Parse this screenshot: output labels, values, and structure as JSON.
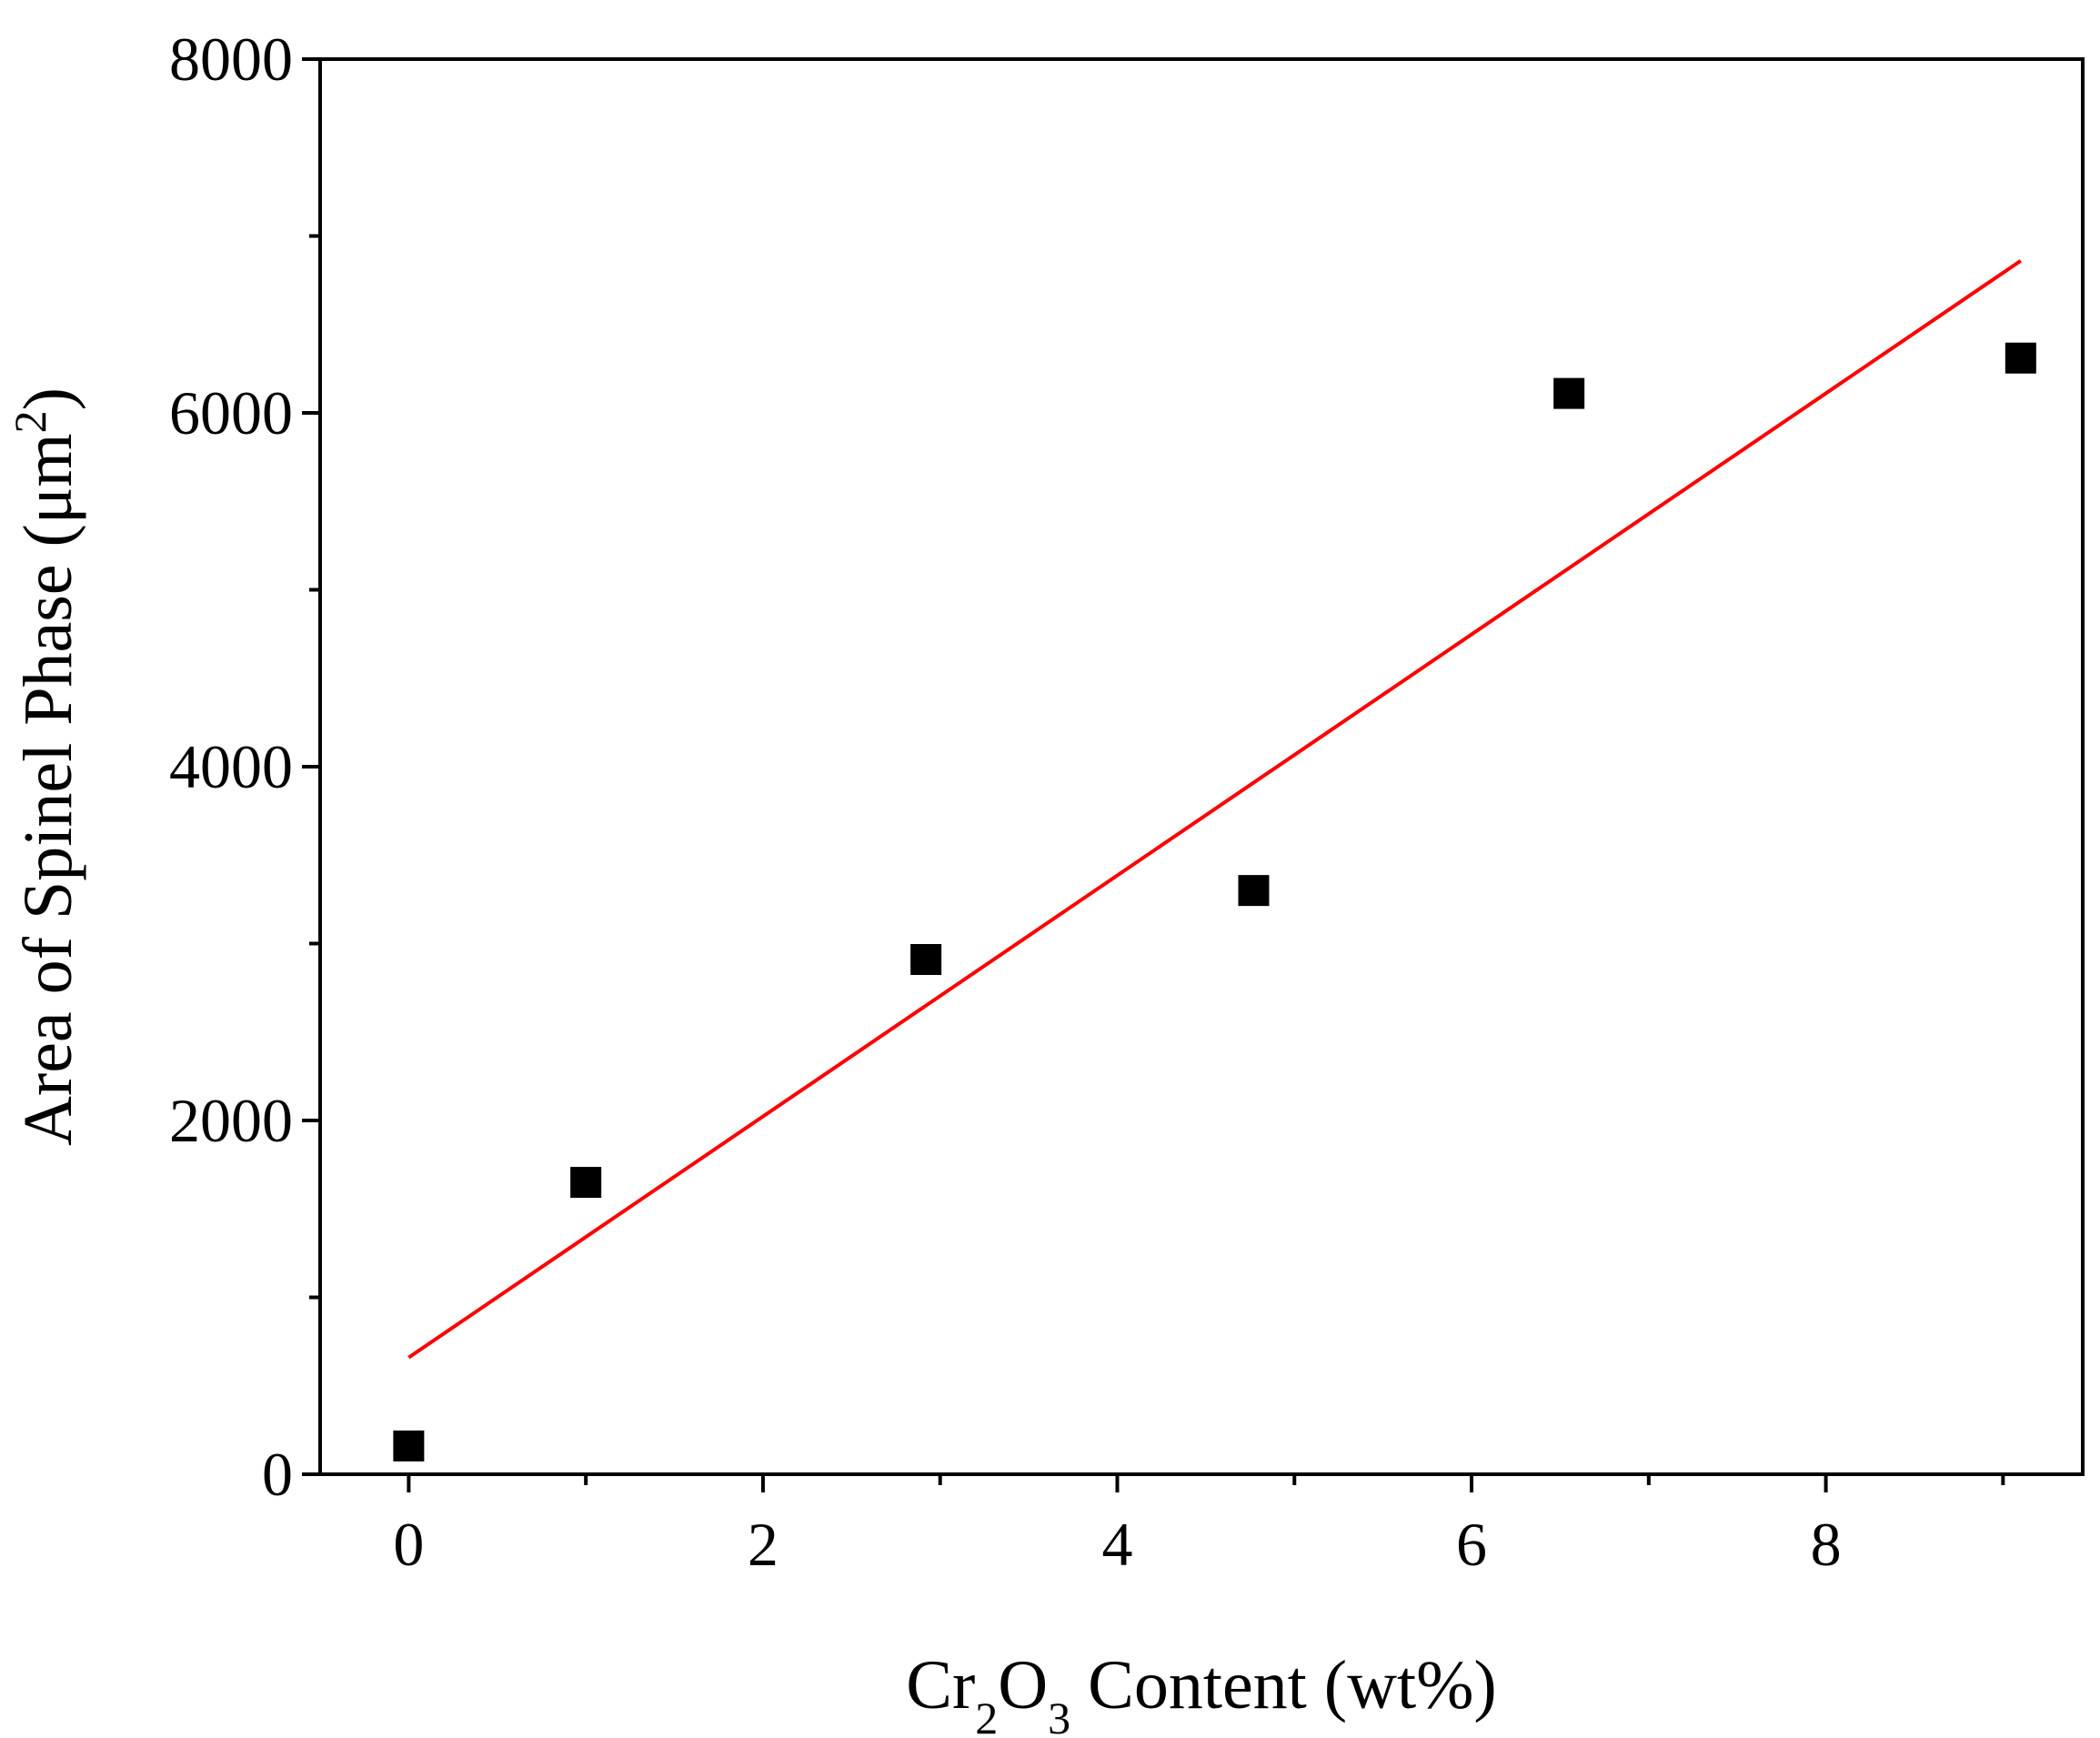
{
  "chart_data": {
    "type": "scatter",
    "xlabel": {
      "parts": [
        {
          "text": "Cr",
          "sub": false
        },
        {
          "text": "2",
          "sub": true
        },
        {
          "text": "O",
          "sub": false
        },
        {
          "text": "3",
          "sub": true
        },
        {
          "text": " Content (wt%)",
          "sub": false
        }
      ]
    },
    "ylabel": {
      "parts": [
        {
          "text": "Area of Spinel Phase (μm",
          "sup": false
        },
        {
          "text": "2",
          "sup": true
        },
        {
          "text": ")",
          "sup": false
        }
      ]
    },
    "xlim": [
      -0.5,
      9.45
    ],
    "ylim": [
      0,
      8000
    ],
    "x_ticks": [
      0,
      2,
      4,
      6,
      8
    ],
    "x_tick_labels": [
      "0",
      "2",
      "4",
      "6",
      "8"
    ],
    "x_minor_ticks": [
      1,
      3,
      5,
      7,
      9
    ],
    "y_ticks": [
      0,
      2000,
      4000,
      6000,
      8000
    ],
    "y_tick_labels": [
      "0",
      "2000",
      "4000",
      "6000",
      "8000"
    ],
    "y_minor_ticks": [
      1000,
      3000,
      5000,
      7000
    ],
    "series": [
      {
        "kind": "scatter",
        "marker": "square",
        "color": "#000000",
        "points": [
          {
            "x": 0,
            "y": 160
          },
          {
            "x": 1.0,
            "y": 1650
          },
          {
            "x": 2.92,
            "y": 2910
          },
          {
            "x": 4.77,
            "y": 3300
          },
          {
            "x": 6.55,
            "y": 6110
          },
          {
            "x": 9.1,
            "y": 6310
          }
        ]
      },
      {
        "kind": "fit-line",
        "color": "#ff0000",
        "points": [
          {
            "x": 0,
            "y": 660
          },
          {
            "x": 9.1,
            "y": 6860
          }
        ]
      }
    ],
    "grid": false
  }
}
